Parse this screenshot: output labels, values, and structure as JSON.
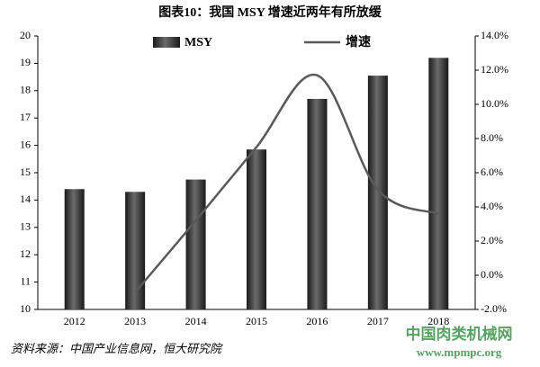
{
  "chart_data": {
    "type": "bar-line",
    "title": "图表10：我国 MSY 增速近两年有所放缓",
    "source": "资料来源：中国产业信息网，恒大研究院",
    "watermark": "中国肉类机械网",
    "watermark_url": "www.mpmpc.org",
    "categories": [
      "2012",
      "2013",
      "2014",
      "2015",
      "2016",
      "2017",
      "2018"
    ],
    "series": [
      {
        "name": "MSY",
        "type": "bar",
        "color": "#3a3a3a",
        "values": [
          14.4,
          14.3,
          14.75,
          15.85,
          17.7,
          18.55,
          19.2
        ]
      },
      {
        "name": "增速",
        "type": "line",
        "axis": "y2",
        "color": "#595959",
        "values": [
          null,
          -1.0,
          3.2,
          7.5,
          11.7,
          5.0,
          3.6
        ]
      }
    ],
    "ylim": [
      10,
      20
    ],
    "yticks": [
      10,
      11,
      12,
      13,
      14,
      15,
      16,
      17,
      18,
      19,
      20
    ],
    "y2lim": [
      -2,
      14
    ],
    "y2ticks": [
      {
        "value": -2,
        "label": "-2.0%"
      },
      {
        "value": 0,
        "label": "0.0%"
      },
      {
        "value": 2,
        "label": "2.0%"
      },
      {
        "value": 4,
        "label": "4.0%"
      },
      {
        "value": 6,
        "label": "6.0%"
      },
      {
        "value": 8,
        "label": "8.0%"
      },
      {
        "value": 10,
        "label": "10.0%"
      },
      {
        "value": 12,
        "label": "12.0%"
      },
      {
        "value": 14,
        "label": "14.0%"
      }
    ]
  }
}
